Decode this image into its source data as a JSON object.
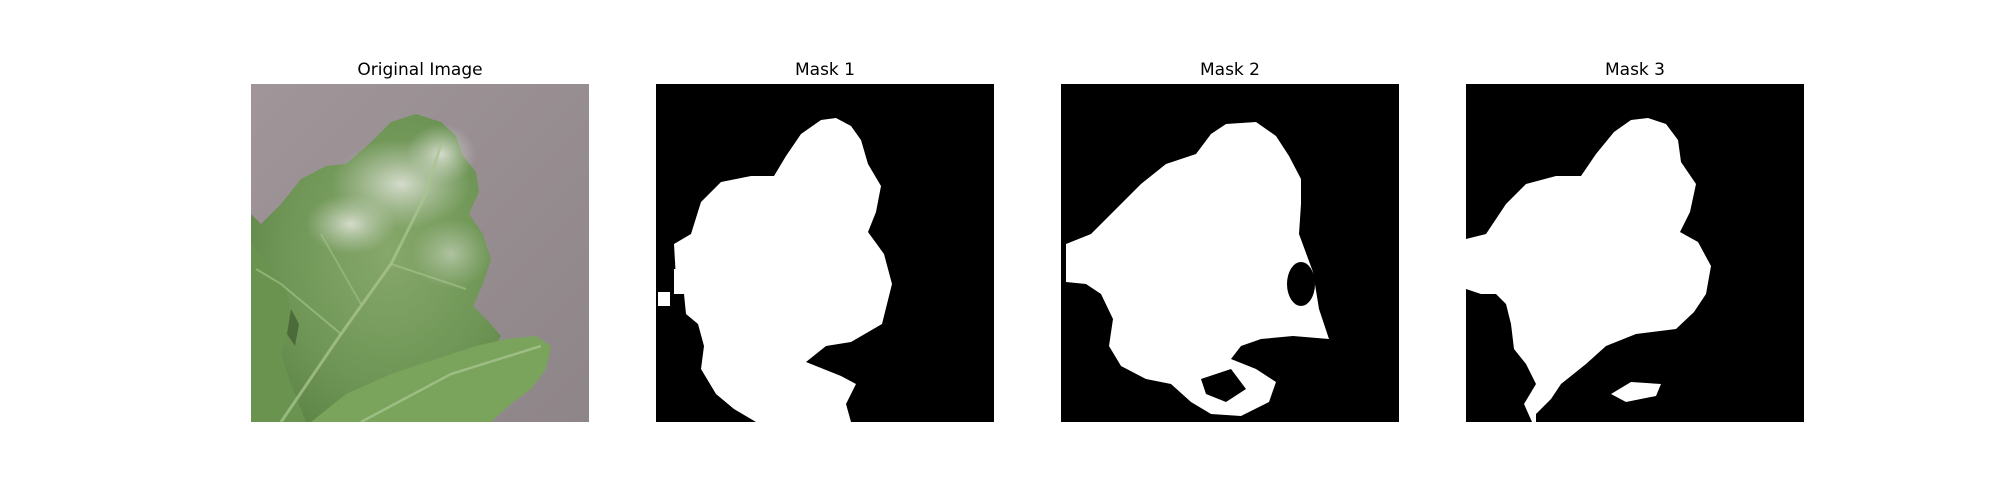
{
  "figure": {
    "panels": [
      {
        "title": "Original Image",
        "kind": "photo",
        "subject": "leaf-with-powdery-mildew"
      },
      {
        "title": "Mask 1",
        "kind": "binary-mask"
      },
      {
        "title": "Mask 2",
        "kind": "binary-mask"
      },
      {
        "title": "Mask 3",
        "kind": "binary-mask"
      }
    ]
  },
  "colors": {
    "background": "#ffffff",
    "mask_background": "#000000",
    "mask_foreground": "#ffffff",
    "photo_background": "#9a8f92",
    "leaf_green": "#6f9656",
    "leaf_light": "#8fb26e",
    "leaf_dark": "#4f7a3c",
    "mildew": "#d9ddd2"
  }
}
